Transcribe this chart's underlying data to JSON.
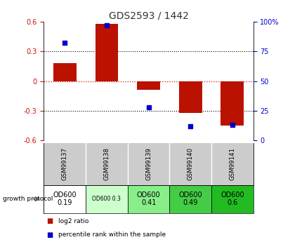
{
  "title": "GDS2593 / 1442",
  "samples": [
    "GSM99137",
    "GSM99138",
    "GSM99139",
    "GSM99140",
    "GSM99141"
  ],
  "log2_ratios": [
    0.18,
    0.58,
    -0.09,
    -0.32,
    -0.45
  ],
  "percentile_ranks": [
    82,
    97,
    28,
    12,
    13
  ],
  "ylim_left": [
    -0.6,
    0.6
  ],
  "ylim_right": [
    0,
    100
  ],
  "bar_color": "#bb1100",
  "dot_color": "#0000cc",
  "grid_color": "#000000",
  "zero_line_color": "#cc1100",
  "bg_color": "#ffffff",
  "plot_bg": "#ffffff",
  "sample_label_bg": "#cccccc",
  "protocol_labels": [
    "OD600\n0.19",
    "OD600 0.3",
    "OD600\n0.41",
    "OD600\n0.49",
    "OD600\n0.6"
  ],
  "protocol_bg": [
    "#ffffff",
    "#ccffcc",
    "#88ee88",
    "#44cc44",
    "#22bb22"
  ],
  "protocol_fontsize": [
    7,
    5.5,
    7,
    7,
    7
  ],
  "title_fontsize": 10,
  "tick_fontsize": 7,
  "right_tick_color": "#0000cc",
  "left_tick_color": "#cc1100",
  "legend_items": [
    {
      "color": "#bb1100",
      "label": "log2 ratio"
    },
    {
      "color": "#0000cc",
      "label": "percentile rank within the sample"
    }
  ]
}
